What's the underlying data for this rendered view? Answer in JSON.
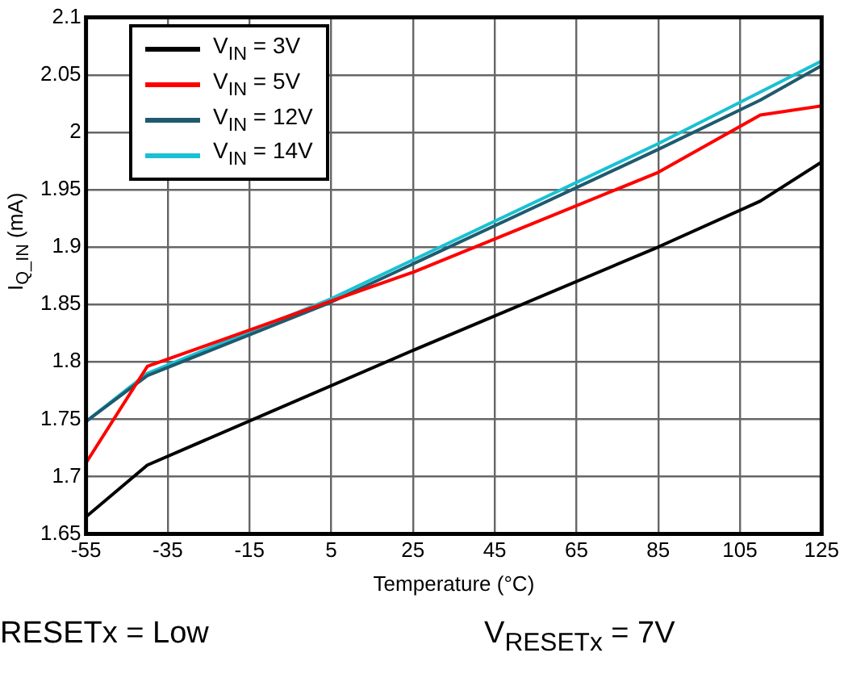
{
  "chart_data": {
    "type": "line",
    "xlabel": "Temperature (°C)",
    "ylabel": "I$_{Q_IN}$ (mA)",
    "xlim": [
      -55,
      125
    ],
    "xticks": [
      -55,
      -35,
      -15,
      5,
      25,
      45,
      65,
      85,
      105,
      125
    ],
    "ylim": [
      1.65,
      2.1
    ],
    "yticks": [
      1.65,
      1.7,
      1.75,
      1.8,
      1.85,
      1.9,
      1.95,
      2,
      2.05,
      2.1
    ],
    "grid": true,
    "legend": "top left",
    "marker": "none",
    "line_style": "solid",
    "series": [
      {
        "name": "V$_{IN}$ = 3V",
        "color": "#000000",
        "x": [
          -55,
          -40,
          25,
          85,
          110,
          125
        ],
        "values": [
          1.665,
          1.71,
          1.81,
          1.9,
          1.94,
          1.974
        ]
      },
      {
        "name": "V$_{IN}$ = 5V",
        "color": "#ff0000",
        "x": [
          -55,
          -40,
          5,
          25,
          85,
          110,
          125
        ],
        "values": [
          1.712,
          1.796,
          1.853,
          1.878,
          1.965,
          2.015,
          2.023
        ]
      },
      {
        "name": "V$_{IN}$ = 12V",
        "color": "#1f5a6e",
        "x": [
          -55,
          -40,
          5,
          85,
          110,
          125
        ],
        "values": [
          1.748,
          1.788,
          1.852,
          1.985,
          2.028,
          2.058
        ]
      },
      {
        "name": "V$_{IN}$ = 14V",
        "color": "#19c1d2",
        "x": [
          -55,
          -40,
          5,
          85,
          110,
          125
        ],
        "values": [
          1.748,
          1.79,
          1.855,
          1.99,
          2.035,
          2.062
        ]
      }
    ],
    "annotations": [
      "RESETx = Low",
      "V$_{RESETx}$ = 7V"
    ]
  }
}
